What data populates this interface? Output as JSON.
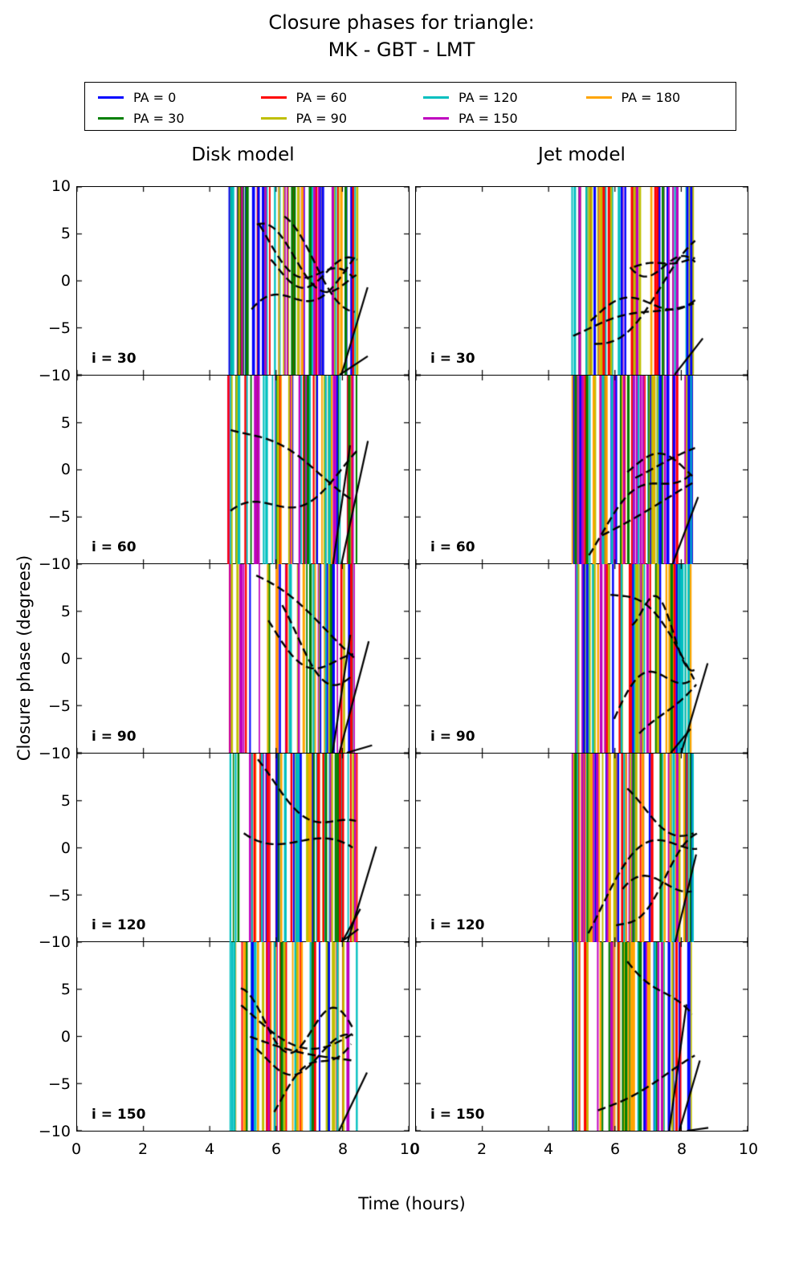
{
  "title": {
    "line1": "Closure phases for triangle:",
    "line2": "MK - GBT - LMT"
  },
  "legend": {
    "entries": [
      {
        "label": "PA = 0",
        "color": "#0000ff"
      },
      {
        "label": "PA = 30",
        "color": "#007f00"
      },
      {
        "label": "PA = 60",
        "color": "#ff0000"
      },
      {
        "label": "PA = 90",
        "color": "#bfbf00"
      },
      {
        "label": "PA = 120",
        "color": "#00bfbf"
      },
      {
        "label": "PA = 150",
        "color": "#bf00bf"
      },
      {
        "label": "PA = 180",
        "color": "#ffa500"
      }
    ]
  },
  "columns": [
    {
      "title": "Disk model"
    },
    {
      "title": "Jet model"
    }
  ],
  "rows": [
    {
      "label": "i = 30",
      "value": 30
    },
    {
      "label": "i = 60",
      "value": 60
    },
    {
      "label": "i = 90",
      "value": 90
    },
    {
      "label": "i = 120",
      "value": 120
    },
    {
      "label": "i = 150",
      "value": 150
    }
  ],
  "axes": {
    "xlabel": "Time (hours)",
    "ylabel": "Closure phase (degrees)",
    "xticks": [
      0,
      2,
      4,
      6,
      8,
      10
    ],
    "xtick_labels": [
      "0",
      "2",
      "4",
      "6",
      "8",
      "10"
    ],
    "yticks": [
      10,
      5,
      0,
      -5,
      -10
    ],
    "ytick_labels": [
      "10",
      "5",
      "0",
      "−5",
      "−10"
    ],
    "xlim": [
      0,
      10
    ],
    "ylim": [
      -10,
      10
    ]
  },
  "chart_data": {
    "type": "line",
    "title": "Closure phases for triangle: MK - GBT - LMT",
    "xlabel": "Time (hours)",
    "ylabel": "Closure phase (degrees)",
    "xlim": [
      0,
      10
    ],
    "ylim": [
      -10,
      10
    ],
    "grid": false,
    "legend_position": "top",
    "subplot_grid": {
      "rows": [
        "i = 30",
        "i = 60",
        "i = 90",
        "i = 120",
        "i = 150"
      ],
      "columns": [
        "Disk model",
        "Jet model"
      ]
    },
    "series": [
      {
        "name": "PA = 0",
        "color": "#0000ff"
      },
      {
        "name": "PA = 30",
        "color": "#007f00"
      },
      {
        "name": "PA = 60",
        "color": "#ff0000"
      },
      {
        "name": "PA = 90",
        "color": "#bfbf00"
      },
      {
        "name": "PA = 120",
        "color": "#00bfbf"
      },
      {
        "name": "PA = 150",
        "color": "#bf00bf"
      },
      {
        "name": "PA = 180",
        "color": "#ffa500"
      }
    ],
    "observation_window_hours": [
      4.5,
      8.5
    ],
    "appearance": "In every panel the closure phases wrap rapidly, appearing as dense near-vertical colored lines spanning the full -10 to +10 degree range between roughly 4.5 and 8.5 hours; slowly varying phase tracks appear as thick dashed black curves converging toward the right edge of the observation window.",
    "overlay_curves_color": "#000000",
    "render_params": {
      "vertical_lines_per_panel": 68,
      "dashed_curves_per_panel": "2-5",
      "steep_solid_lines_per_panel": "1-3",
      "dash_pattern": [
        10,
        5
      ]
    }
  }
}
